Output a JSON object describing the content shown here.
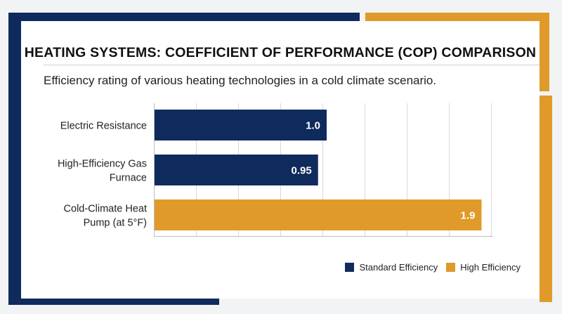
{
  "chart_data": {
    "type": "bar",
    "orientation": "horizontal",
    "title": "HEATING SYSTEMS: COEFFICIENT OF PERFORMANCE (COP) COMPARISON",
    "subtitle": "Efficiency rating of various heating technologies in a cold climate scenario.",
    "categories": [
      [
        "Electric Resistance"
      ],
      [
        "High-Efficiency Gas",
        "Furnace"
      ],
      [
        "Cold-Climate Heat",
        "Pump (at 5°F)"
      ]
    ],
    "values": [
      1.0,
      0.95,
      1.9
    ],
    "value_labels": [
      "1.0",
      "0.95",
      "1.9"
    ],
    "bar_series": [
      "Standard Efficiency",
      "Standard Efficiency",
      "High Efficiency"
    ],
    "xlim": [
      0,
      2.0
    ],
    "grid": true,
    "legend_position": "bottom-right",
    "series": [
      {
        "name": "Standard Efficiency",
        "color": "#0f2a5c"
      },
      {
        "name": "High Efficiency",
        "color": "#e09a2a"
      }
    ]
  },
  "colors": {
    "navy": "#0f2a5c",
    "gold": "#e09a2a",
    "gridline": "#d8d8d8"
  }
}
